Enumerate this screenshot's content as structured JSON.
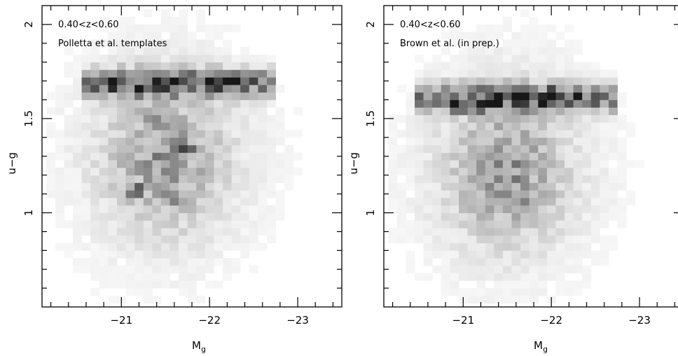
{
  "chart_data": [
    {
      "type": "heatmap",
      "panel_lines": [
        "0.40<z<0.60",
        "Polletta et al. templates"
      ],
      "xlabel": "M",
      "xlabel_sub": "g",
      "ylabel": "u−g",
      "xlim": [
        -20.1,
        -23.5
      ],
      "ylim": [
        0.5,
        2.1
      ],
      "xticks": [
        -21,
        -22,
        -23
      ],
      "xtick_labels": [
        "−21",
        "−22",
        "−23"
      ],
      "yticks": [
        1.0,
        1.5,
        2.0
      ],
      "ytick_labels": [
        "1",
        "1.5",
        "2"
      ],
      "grid": false,
      "density_peaks": [
        {
          "x": -20.95,
          "y": 1.68,
          "w": 0.95
        },
        {
          "x": -21.25,
          "y": 1.66,
          "w": 1.0
        },
        {
          "x": -21.55,
          "y": 1.71,
          "w": 1.0
        },
        {
          "x": -21.75,
          "y": 1.7,
          "w": 0.95
        },
        {
          "x": -22.05,
          "y": 1.7,
          "w": 0.95
        },
        {
          "x": -22.25,
          "y": 1.71,
          "w": 0.85
        },
        {
          "x": -21.15,
          "y": 1.12,
          "w": 0.85
        },
        {
          "x": -21.55,
          "y": 1.08,
          "w": 0.75
        },
        {
          "x": -21.75,
          "y": 1.33,
          "w": 0.65
        },
        {
          "x": -21.35,
          "y": 1.48,
          "w": 0.6
        }
      ]
    },
    {
      "type": "heatmap",
      "panel_lines": [
        "0.40<z<0.60",
        "Brown et al. (in prep.)"
      ],
      "xlabel": "M",
      "xlabel_sub": "g",
      "ylabel": "u−g",
      "xlim": [
        -20.1,
        -23.5
      ],
      "ylim": [
        0.5,
        2.1
      ],
      "xticks": [
        -21,
        -22,
        -23
      ],
      "xtick_labels": [
        "−21",
        "−22",
        "−23"
      ],
      "yticks": [
        1.0,
        1.5,
        2.0
      ],
      "ytick_labels": [
        "1",
        "1.5",
        "2"
      ],
      "grid": false,
      "density_peaks": [
        {
          "x": -20.95,
          "y": 1.57,
          "w": 0.85
        },
        {
          "x": -21.25,
          "y": 1.57,
          "w": 0.9
        },
        {
          "x": -21.35,
          "y": 1.61,
          "w": 1.0
        },
        {
          "x": -21.65,
          "y": 1.61,
          "w": 1.0
        },
        {
          "x": -21.95,
          "y": 1.6,
          "w": 0.95
        },
        {
          "x": -22.05,
          "y": 1.64,
          "w": 0.95
        },
        {
          "x": -22.25,
          "y": 1.62,
          "w": 0.7
        },
        {
          "x": -21.75,
          "y": 1.04,
          "w": 0.75
        },
        {
          "x": -21.4,
          "y": 1.28,
          "w": 0.55
        }
      ]
    }
  ]
}
